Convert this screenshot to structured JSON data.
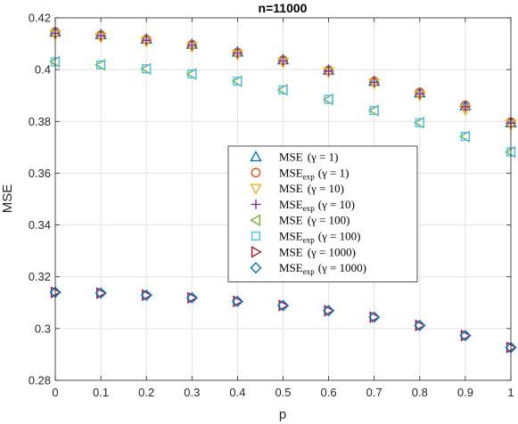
{
  "chart_data": {
    "type": "scatter",
    "title": "n=11000",
    "xlabel": "p",
    "ylabel": "MSE",
    "xlim": [
      0,
      1
    ],
    "ylim": [
      0.28,
      0.42
    ],
    "xticks": [
      0,
      0.1,
      0.2,
      0.3,
      0.4,
      0.5,
      0.6,
      0.7,
      0.8,
      0.9,
      1
    ],
    "xtick_labels": [
      "0",
      "0.1",
      "0.2",
      "0.3",
      "0.4",
      "0.5",
      "0.6",
      "0.7",
      "0.8",
      "0.9",
      "1"
    ],
    "yticks": [
      0.28,
      0.3,
      0.32,
      0.34,
      0.36,
      0.38,
      0.4,
      0.42
    ],
    "ytick_labels": [
      "0.28",
      "0.3",
      "0.32",
      "0.34",
      "0.36",
      "0.38",
      "0.4",
      "0.42"
    ],
    "grid": true,
    "legend_position": "center-right",
    "x": [
      0,
      0.1,
      0.2,
      0.3,
      0.4,
      0.5,
      0.6,
      0.7,
      0.8,
      0.9,
      1
    ],
    "series": [
      {
        "name": "MSE (γ = 1)",
        "legend_main": "MSE",
        "legend_sub": "",
        "legend_param": "(γ = 1)",
        "marker": "triangle-up",
        "color": "#0072BD",
        "values": [
          0.4145,
          0.4135,
          0.4118,
          0.4098,
          0.4068,
          0.4038,
          0.3998,
          0.3955,
          0.391,
          0.386,
          0.3795
        ]
      },
      {
        "name": "MSEexp (γ = 1)",
        "legend_main": "MSE",
        "legend_sub": "exp",
        "legend_param": "(γ = 1)",
        "marker": "circle",
        "color": "#D95319",
        "values": [
          0.4145,
          0.4133,
          0.4116,
          0.4096,
          0.4066,
          0.4036,
          0.3997,
          0.3954,
          0.3912,
          0.3862,
          0.3797
        ]
      },
      {
        "name": "MSE (γ = 10)",
        "legend_main": "MSE",
        "legend_sub": "",
        "legend_param": "(γ = 10)",
        "marker": "triangle-down",
        "color": "#EDB120",
        "values": [
          0.4135,
          0.4125,
          0.4108,
          0.4088,
          0.4058,
          0.4028,
          0.399,
          0.3947,
          0.39,
          0.3845,
          0.3787
        ]
      },
      {
        "name": "MSEexp (γ = 10)",
        "legend_main": "MSE",
        "legend_sub": "exp",
        "legend_param": "(γ = 10)",
        "marker": "plus",
        "color": "#7E2F8E",
        "values": [
          0.414,
          0.413,
          0.4113,
          0.4093,
          0.4063,
          0.4033,
          0.3994,
          0.3951,
          0.3906,
          0.3856,
          0.3793
        ]
      },
      {
        "name": "MSE (γ = 100)",
        "legend_main": "MSE",
        "legend_sub": "",
        "legend_param": "(γ = 100)",
        "marker": "triangle-left",
        "color": "#77AC30",
        "values": [
          0.403,
          0.4018,
          0.4003,
          0.3983,
          0.3955,
          0.3922,
          0.3885,
          0.3842,
          0.3795,
          0.3742,
          0.3682
        ]
      },
      {
        "name": "MSEexp (γ = 100)",
        "legend_main": "MSE",
        "legend_sub": "exp",
        "legend_param": "(γ = 100)",
        "marker": "square",
        "color": "#4DBEEE",
        "values": [
          0.403,
          0.4018,
          0.4003,
          0.3983,
          0.3955,
          0.3922,
          0.3885,
          0.3842,
          0.3795,
          0.3742,
          0.3682
        ]
      },
      {
        "name": "MSE (γ = 1000)",
        "legend_main": "MSE",
        "legend_sub": "",
        "legend_param": "(γ = 1000)",
        "marker": "triangle-right",
        "color": "#A2142F",
        "values": [
          0.314,
          0.3137,
          0.3129,
          0.3119,
          0.3105,
          0.3089,
          0.3069,
          0.3044,
          0.3012,
          0.2973,
          0.2927
        ]
      },
      {
        "name": "MSEexp (γ = 1000)",
        "legend_main": "MSE",
        "legend_sub": "exp",
        "legend_param": "(γ = 1000)",
        "marker": "diamond",
        "color": "#0072BD",
        "values": [
          0.314,
          0.3137,
          0.3129,
          0.3119,
          0.3105,
          0.3089,
          0.3069,
          0.3044,
          0.3012,
          0.2973,
          0.2927
        ]
      }
    ]
  }
}
